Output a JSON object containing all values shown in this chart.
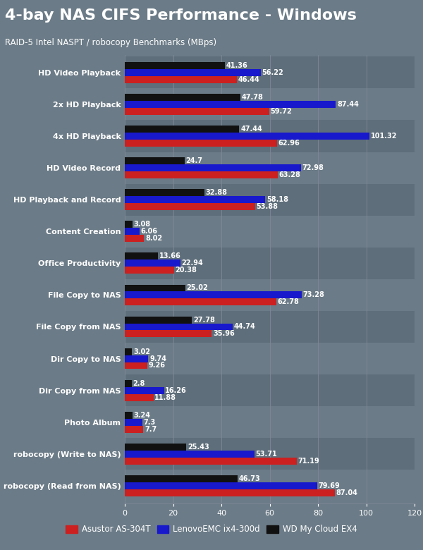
{
  "title": "4-bay NAS CIFS Performance - Windows",
  "subtitle": "RAID-5 Intel NASPT / robocopy Benchmarks (MBps)",
  "title_bg": "#E8A000",
  "categories": [
    "HD Video Playback",
    "2x HD Playback",
    "4x HD Playback",
    "HD Video Record",
    "HD Playback and Record",
    "Content Creation",
    "Office Productivity",
    "File Copy to NAS",
    "File Copy from NAS",
    "Dir Copy to NAS",
    "Dir Copy from NAS",
    "Photo Album",
    "robocopy (Write to NAS)",
    "robocopy (Read from NAS)"
  ],
  "series": [
    {
      "name": "Asustor AS-304T",
      "color": "#CC2020",
      "values": [
        46.44,
        59.72,
        62.96,
        63.28,
        53.88,
        8.02,
        20.38,
        62.78,
        35.96,
        9.26,
        11.88,
        7.7,
        71.19,
        87.04
      ]
    },
    {
      "name": "LenovoEMC ix4-300d",
      "color": "#1818CC",
      "values": [
        56.22,
        87.44,
        101.32,
        72.98,
        58.18,
        6.06,
        22.94,
        73.28,
        44.74,
        9.74,
        16.26,
        7.3,
        53.71,
        79.69
      ]
    },
    {
      "name": "WD My Cloud EX4",
      "color": "#111111",
      "values": [
        41.36,
        47.78,
        47.44,
        24.7,
        32.88,
        3.08,
        13.66,
        25.02,
        27.78,
        3.02,
        2.8,
        3.24,
        25.43,
        46.73
      ]
    }
  ],
  "xlim": [
    0,
    120
  ],
  "xticks": [
    0,
    20,
    40,
    60,
    80,
    100,
    120
  ],
  "bg_color": "#6B7B87",
  "row_colors": [
    "#5E6E7A",
    "#6B7B87"
  ],
  "label_fontsize": 8.0,
  "title_fontsize": 16,
  "subtitle_fontsize": 8.5,
  "bar_height": 0.22,
  "value_fontsize": 7.0
}
